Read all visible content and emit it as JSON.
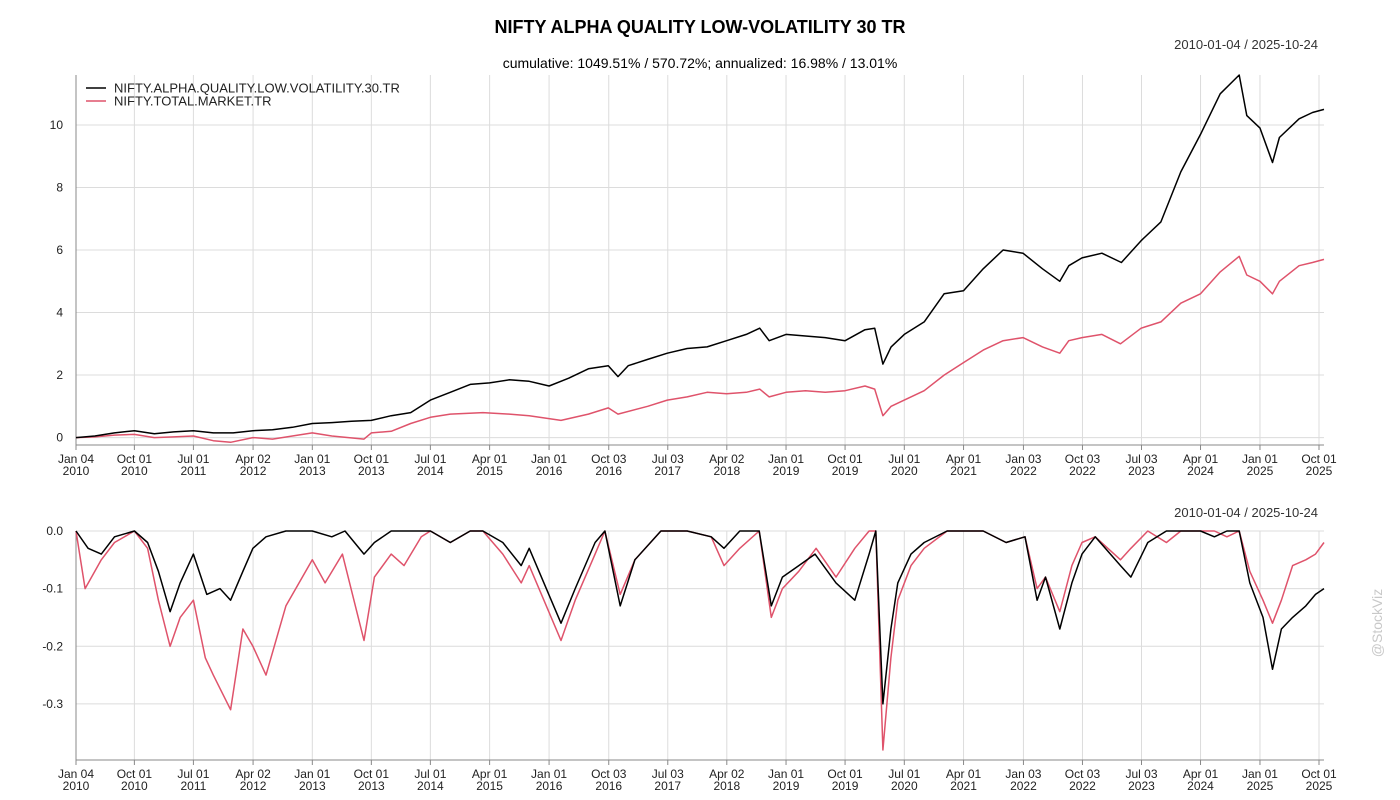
{
  "header": {
    "title": "NIFTY ALPHA QUALITY LOW-VOLATILITY 30 TR",
    "subtitle": "cumulative: 1049.51% / 570.72%; annualized: 16.98% / 13.01%",
    "range_top": "2010-01-04 / 2025-10-24",
    "range_bottom": "2010-01-04 / 2025-10-24",
    "watermark": "@StockViz"
  },
  "colors": {
    "series1": "#000000",
    "series2": "#df536b",
    "grid": "#dcdcdc",
    "axis": "#888888"
  },
  "chart_data": [
    {
      "type": "line",
      "panel": "cumulative",
      "ylim": [
        -0.1,
        11.6
      ],
      "yticks": [
        0,
        2,
        4,
        6,
        8,
        10
      ],
      "ytick_labels": [
        "0",
        "2",
        "4",
        "6",
        "8",
        "10"
      ],
      "grid": true,
      "legend_position": "top-left",
      "x_ticks": [
        {
          "date": "2010-01-04",
          "l1": "Jan 04",
          "l2": "2010"
        },
        {
          "date": "2010-10-01",
          "l1": "Oct 01",
          "l2": "2010"
        },
        {
          "date": "2011-07-01",
          "l1": "Jul 01",
          "l2": "2011"
        },
        {
          "date": "2012-04-02",
          "l1": "Apr 02",
          "l2": "2012"
        },
        {
          "date": "2013-01-01",
          "l1": "Jan 01",
          "l2": "2013"
        },
        {
          "date": "2013-10-01",
          "l1": "Oct 01",
          "l2": "2013"
        },
        {
          "date": "2014-07-01",
          "l1": "Jul 01",
          "l2": "2014"
        },
        {
          "date": "2015-04-01",
          "l1": "Apr 01",
          "l2": "2015"
        },
        {
          "date": "2016-01-01",
          "l1": "Jan 01",
          "l2": "2016"
        },
        {
          "date": "2016-10-03",
          "l1": "Oct 03",
          "l2": "2016"
        },
        {
          "date": "2017-07-03",
          "l1": "Jul 03",
          "l2": "2017"
        },
        {
          "date": "2018-04-02",
          "l1": "Apr 02",
          "l2": "2018"
        },
        {
          "date": "2019-01-01",
          "l1": "Jan 01",
          "l2": "2019"
        },
        {
          "date": "2019-10-01",
          "l1": "Oct 01",
          "l2": "2019"
        },
        {
          "date": "2020-07-01",
          "l1": "Jul 01",
          "l2": "2020"
        },
        {
          "date": "2021-04-01",
          "l1": "Apr 01",
          "l2": "2021"
        },
        {
          "date": "2022-01-03",
          "l1": "Jan 03",
          "l2": "2022"
        },
        {
          "date": "2022-10-03",
          "l1": "Oct 03",
          "l2": "2022"
        },
        {
          "date": "2023-07-03",
          "l1": "Jul 03",
          "l2": "2023"
        },
        {
          "date": "2024-04-01",
          "l1": "Apr 01",
          "l2": "2024"
        },
        {
          "date": "2025-01-01",
          "l1": "Jan 01",
          "l2": "2025"
        },
        {
          "date": "2025-10-01",
          "l1": "Oct 01",
          "l2": "2025"
        }
      ],
      "x_end": "2025-10-24",
      "series": [
        {
          "name": "NIFTY.ALPHA.QUALITY.LOW.VOLATILITY.30.TR",
          "color": "#000000",
          "x": [
            "2010-01-04",
            "2010-04-01",
            "2010-07-01",
            "2010-10-01",
            "2011-01-01",
            "2011-04-01",
            "2011-07-01",
            "2011-10-01",
            "2012-01-01",
            "2012-04-01",
            "2012-07-01",
            "2012-10-01",
            "2013-01-01",
            "2013-04-01",
            "2013-07-01",
            "2013-10-01",
            "2014-01-01",
            "2014-04-01",
            "2014-07-01",
            "2014-10-01",
            "2015-01-01",
            "2015-04-01",
            "2015-07-01",
            "2015-10-01",
            "2016-01-01",
            "2016-04-01",
            "2016-07-01",
            "2016-10-01",
            "2016-11-15",
            "2017-01-01",
            "2017-04-01",
            "2017-07-01",
            "2017-10-01",
            "2018-01-01",
            "2018-04-01",
            "2018-07-01",
            "2018-09-01",
            "2018-10-15",
            "2019-01-01",
            "2019-04-01",
            "2019-07-01",
            "2019-10-01",
            "2020-01-01",
            "2020-02-15",
            "2020-03-24",
            "2020-05-01",
            "2020-07-01",
            "2020-10-01",
            "2021-01-01",
            "2021-04-01",
            "2021-07-01",
            "2021-10-01",
            "2022-01-01",
            "2022-04-01",
            "2022-06-20",
            "2022-08-01",
            "2022-10-01",
            "2023-01-01",
            "2023-04-01",
            "2023-07-01",
            "2023-10-01",
            "2024-01-01",
            "2024-04-01",
            "2024-07-01",
            "2024-09-27",
            "2024-11-01",
            "2025-01-01",
            "2025-02-28",
            "2025-04-01",
            "2025-07-01",
            "2025-09-01",
            "2025-10-24"
          ],
          "values": [
            0,
            0.05,
            0.15,
            0.22,
            0.12,
            0.18,
            0.22,
            0.15,
            0.15,
            0.22,
            0.25,
            0.33,
            0.45,
            0.48,
            0.52,
            0.55,
            0.7,
            0.8,
            1.2,
            1.45,
            1.7,
            1.75,
            1.85,
            1.8,
            1.65,
            1.9,
            2.2,
            2.3,
            1.95,
            2.3,
            2.5,
            2.7,
            2.85,
            2.9,
            3.1,
            3.3,
            3.5,
            3.1,
            3.3,
            3.25,
            3.2,
            3.1,
            3.45,
            3.5,
            2.35,
            2.9,
            3.3,
            3.7,
            4.6,
            4.7,
            5.4,
            6.0,
            5.9,
            5.4,
            5.0,
            5.5,
            5.75,
            5.9,
            5.6,
            6.3,
            6.9,
            8.5,
            9.7,
            11.0,
            11.6,
            10.3,
            9.9,
            8.8,
            9.6,
            10.2,
            10.4,
            10.5
          ]
        },
        {
          "name": "NIFTY.TOTAL.MARKET.TR",
          "color": "#df536b",
          "x": [
            "2010-01-04",
            "2010-04-01",
            "2010-07-01",
            "2010-10-01",
            "2011-01-01",
            "2011-04-01",
            "2011-07-01",
            "2011-10-01",
            "2011-12-20",
            "2012-04-01",
            "2012-07-01",
            "2012-10-01",
            "2013-01-01",
            "2013-04-01",
            "2013-08-28",
            "2013-10-01",
            "2014-01-01",
            "2014-04-01",
            "2014-07-01",
            "2014-10-01",
            "2015-03-01",
            "2015-07-01",
            "2015-10-01",
            "2016-02-25",
            "2016-07-01",
            "2016-10-01",
            "2016-11-15",
            "2017-04-01",
            "2017-07-01",
            "2017-10-01",
            "2018-01-01",
            "2018-04-01",
            "2018-07-01",
            "2018-09-01",
            "2018-10-15",
            "2019-01-01",
            "2019-04-01",
            "2019-07-01",
            "2019-10-01",
            "2020-01-01",
            "2020-02-15",
            "2020-03-24",
            "2020-05-01",
            "2020-07-01",
            "2020-10-01",
            "2021-01-01",
            "2021-04-01",
            "2021-07-01",
            "2021-10-01",
            "2022-01-01",
            "2022-04-01",
            "2022-06-20",
            "2022-08-01",
            "2022-10-01",
            "2023-01-01",
            "2023-03-28",
            "2023-07-01",
            "2023-10-01",
            "2024-01-01",
            "2024-04-01",
            "2024-07-01",
            "2024-09-27",
            "2024-11-01",
            "2025-01-01",
            "2025-02-28",
            "2025-04-01",
            "2025-07-01",
            "2025-09-01",
            "2025-10-24"
          ],
          "values": [
            0,
            0.02,
            0.08,
            0.1,
            0.0,
            0.02,
            0.05,
            -0.1,
            -0.15,
            0.0,
            -0.05,
            0.05,
            0.15,
            0.05,
            -0.05,
            0.15,
            0.2,
            0.45,
            0.65,
            0.75,
            0.8,
            0.75,
            0.7,
            0.55,
            0.75,
            0.95,
            0.75,
            1.0,
            1.2,
            1.3,
            1.45,
            1.4,
            1.45,
            1.55,
            1.3,
            1.45,
            1.5,
            1.45,
            1.5,
            1.65,
            1.55,
            0.7,
            1.0,
            1.2,
            1.5,
            2.0,
            2.4,
            2.8,
            3.1,
            3.2,
            2.9,
            2.7,
            3.1,
            3.2,
            3.3,
            3.0,
            3.5,
            3.7,
            4.3,
            4.6,
            5.3,
            5.8,
            5.2,
            5.0,
            4.6,
            5.0,
            5.5,
            5.6,
            5.7
          ]
        }
      ]
    },
    {
      "type": "line",
      "panel": "drawdown",
      "ylim": [
        -0.38,
        0.0
      ],
      "yticks": [
        0.0,
        -0.1,
        -0.2,
        -0.3
      ],
      "ytick_labels": [
        "0.0",
        "-0.1",
        "-0.2",
        "-0.3"
      ],
      "grid": true,
      "series": [
        {
          "name": "NIFTY.ALPHA.QUALITY.LOW.VOLATILITY.30.TR",
          "color": "#000000",
          "x": [
            "2010-01-04",
            "2010-03-01",
            "2010-05-01",
            "2010-07-01",
            "2010-10-01",
            "2010-12-01",
            "2011-01-20",
            "2011-03-15",
            "2011-05-01",
            "2011-07-01",
            "2011-09-01",
            "2011-11-01",
            "2011-12-20",
            "2012-02-15",
            "2012-04-01",
            "2012-06-01",
            "2012-09-01",
            "2013-01-01",
            "2013-04-01",
            "2013-06-01",
            "2013-08-28",
            "2013-10-15",
            "2014-01-01",
            "2014-04-01",
            "2014-07-01",
            "2014-10-01",
            "2015-01-01",
            "2015-03-01",
            "2015-06-01",
            "2015-08-25",
            "2015-10-01",
            "2016-02-25",
            "2016-05-01",
            "2016-08-01",
            "2016-09-15",
            "2016-11-25",
            "2017-02-01",
            "2017-06-01",
            "2017-10-01",
            "2018-01-20",
            "2018-03-20",
            "2018-06-01",
            "2018-08-30",
            "2018-10-25",
            "2018-12-15",
            "2019-03-01",
            "2019-05-15",
            "2019-08-20",
            "2019-11-15",
            "2020-01-20",
            "2020-02-20",
            "2020-03-24",
            "2020-04-30",
            "2020-06-01",
            "2020-08-01",
            "2020-10-01",
            "2021-01-15",
            "2021-04-01",
            "2021-07-01",
            "2021-10-15",
            "2022-01-10",
            "2022-03-07",
            "2022-04-15",
            "2022-06-20",
            "2022-08-15",
            "2022-10-01",
            "2022-12-01",
            "2023-03-28",
            "2023-05-15",
            "2023-08-01",
            "2023-10-26",
            "2024-01-01",
            "2024-04-01",
            "2024-06-04",
            "2024-08-01",
            "2024-09-27",
            "2024-11-15",
            "2025-01-15",
            "2025-02-28",
            "2025-04-10",
            "2025-06-01",
            "2025-08-01",
            "2025-09-15",
            "2025-10-24"
          ],
          "values": [
            0,
            -0.03,
            -0.04,
            -0.01,
            0,
            -0.02,
            -0.07,
            -0.14,
            -0.09,
            -0.04,
            -0.11,
            -0.1,
            -0.12,
            -0.07,
            -0.03,
            -0.01,
            0,
            0,
            -0.01,
            0,
            -0.04,
            -0.02,
            0,
            0,
            0,
            -0.02,
            0,
            0,
            -0.02,
            -0.06,
            -0.03,
            -0.16,
            -0.1,
            -0.02,
            0,
            -0.13,
            -0.05,
            0,
            0,
            -0.01,
            -0.03,
            0,
            0,
            -0.13,
            -0.08,
            -0.06,
            -0.04,
            -0.09,
            -0.12,
            -0.04,
            0,
            -0.3,
            -0.17,
            -0.09,
            -0.04,
            -0.02,
            0,
            0,
            0,
            -0.02,
            -0.01,
            -0.12,
            -0.08,
            -0.17,
            -0.09,
            -0.04,
            -0.01,
            -0.06,
            -0.08,
            -0.02,
            0,
            0,
            0,
            -0.01,
            0,
            0,
            -0.09,
            -0.15,
            -0.24,
            -0.17,
            -0.15,
            -0.13,
            -0.11,
            -0.1
          ]
        },
        {
          "name": "NIFTY.TOTAL.MARKET.TR",
          "color": "#df536b",
          "x": [
            "2010-01-04",
            "2010-02-15",
            "2010-05-01",
            "2010-07-01",
            "2010-10-01",
            "2010-12-01",
            "2011-01-20",
            "2011-03-15",
            "2011-05-01",
            "2011-07-01",
            "2011-08-25",
            "2011-10-01",
            "2011-12-20",
            "2012-02-15",
            "2012-04-01",
            "2012-06-01",
            "2012-09-01",
            "2013-01-01",
            "2013-03-01",
            "2013-05-20",
            "2013-08-28",
            "2013-10-15",
            "2014-01-01",
            "2014-03-01",
            "2014-05-20",
            "2014-07-01",
            "2014-10-01",
            "2015-01-01",
            "2015-03-01",
            "2015-06-01",
            "2015-08-25",
            "2015-10-01",
            "2016-02-25",
            "2016-05-01",
            "2016-08-01",
            "2016-09-15",
            "2016-11-25",
            "2017-02-01",
            "2017-06-01",
            "2017-10-01",
            "2018-01-20",
            "2018-03-20",
            "2018-06-01",
            "2018-08-30",
            "2018-10-25",
            "2018-12-15",
            "2019-03-01",
            "2019-05-20",
            "2019-08-20",
            "2019-11-15",
            "2020-01-20",
            "2020-02-20",
            "2020-03-24",
            "2020-04-30",
            "2020-06-01",
            "2020-08-01",
            "2020-10-01",
            "2021-01-15",
            "2021-04-01",
            "2021-07-01",
            "2021-10-15",
            "2022-01-10",
            "2022-03-07",
            "2022-04-15",
            "2022-06-20",
            "2022-08-15",
            "2022-10-01",
            "2022-12-01",
            "2023-03-28",
            "2023-05-15",
            "2023-08-01",
            "2023-10-26",
            "2024-01-01",
            "2024-04-01",
            "2024-06-04",
            "2024-08-01",
            "2024-09-27",
            "2024-11-15",
            "2025-01-15",
            "2025-02-28",
            "2025-04-10",
            "2025-06-01",
            "2025-08-01",
            "2025-09-15",
            "2025-10-24"
          ],
          "values": [
            0,
            -0.1,
            -0.05,
            -0.02,
            0,
            -0.03,
            -0.12,
            -0.2,
            -0.15,
            -0.12,
            -0.22,
            -0.25,
            -0.31,
            -0.17,
            -0.2,
            -0.25,
            -0.13,
            -0.05,
            -0.09,
            -0.04,
            -0.19,
            -0.08,
            -0.04,
            -0.06,
            -0.01,
            0,
            -0.02,
            0,
            0,
            -0.04,
            -0.09,
            -0.06,
            -0.19,
            -0.12,
            -0.04,
            0,
            -0.11,
            -0.05,
            0,
            0,
            -0.01,
            -0.06,
            -0.03,
            0,
            -0.15,
            -0.1,
            -0.07,
            -0.03,
            -0.08,
            -0.03,
            0,
            0,
            -0.38,
            -0.22,
            -0.12,
            -0.06,
            -0.03,
            0,
            0,
            0,
            -0.02,
            -0.01,
            -0.1,
            -0.08,
            -0.14,
            -0.06,
            -0.02,
            -0.01,
            -0.05,
            -0.03,
            0,
            -0.02,
            0,
            0,
            0,
            -0.01,
            0,
            -0.07,
            -0.12,
            -0.16,
            -0.12,
            -0.06,
            -0.05,
            -0.04,
            -0.02
          ]
        }
      ]
    }
  ]
}
